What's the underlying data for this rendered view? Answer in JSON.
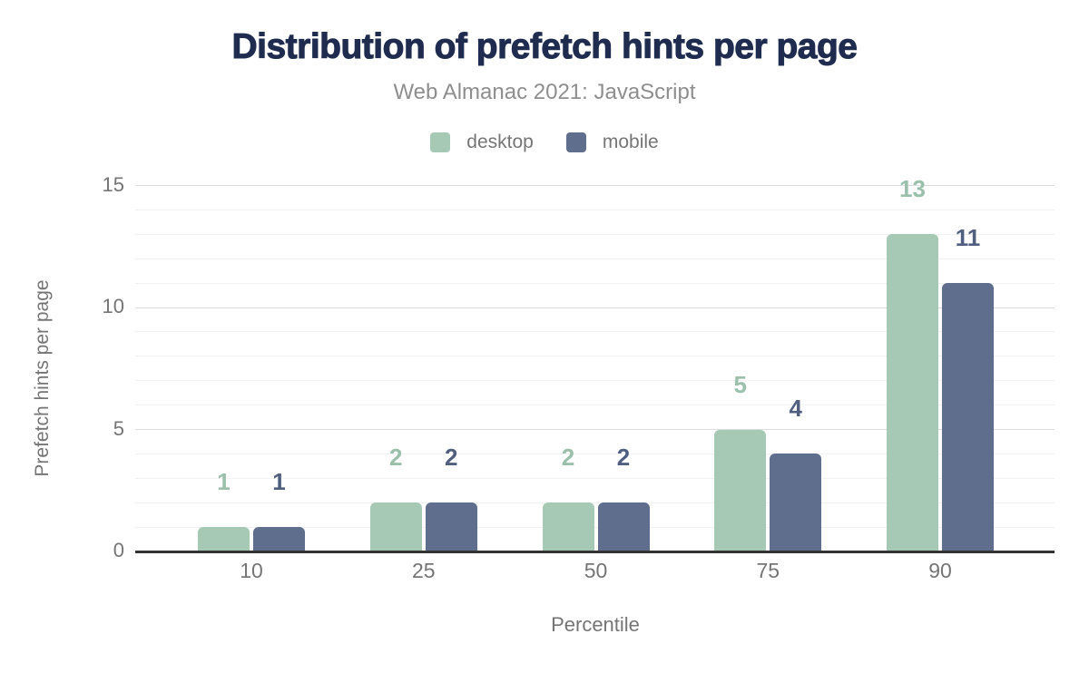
{
  "header": {
    "title": "Distribution of prefetch hints per page",
    "subtitle": "Web Almanac 2021: JavaScript"
  },
  "legend": {
    "items": [
      {
        "label": "desktop",
        "color": "#a6c9b6"
      },
      {
        "label": "mobile",
        "color": "#5f6e8c"
      }
    ]
  },
  "axes": {
    "x_title": "Percentile",
    "y_title": "Prefetch hints per page"
  },
  "colors": {
    "title_text": "#1f2c4f",
    "subtitle_text": "#8e8e8e",
    "axis_text": "#757575",
    "axis_line": "#333333",
    "grid_major": "#dcdcdc",
    "grid_minor": "#f2f2f2",
    "desktop_bar": "#a6c9b6",
    "mobile_bar": "#5f6e8c",
    "desktop_value_label": "#9ac0ac",
    "mobile_value_label": "#505f80"
  },
  "chart_data": {
    "type": "bar",
    "title": "Distribution of prefetch hints per page",
    "subtitle": "Web Almanac 2021: JavaScript",
    "xlabel": "Percentile",
    "ylabel": "Prefetch hints per page",
    "categories": [
      "10",
      "25",
      "50",
      "75",
      "90"
    ],
    "series": [
      {
        "name": "desktop",
        "color": "#a6c9b6",
        "label_color": "#9ac0ac",
        "values": [
          1,
          2,
          2,
          5,
          13
        ]
      },
      {
        "name": "mobile",
        "color": "#5f6e8c",
        "label_color": "#505f80",
        "values": [
          1,
          2,
          2,
          4,
          11
        ]
      }
    ],
    "ylim": [
      0,
      15
    ],
    "y_ticks": [
      0,
      5,
      10,
      15
    ],
    "grid": "horizontal minor lines every 1 unit, darker lines at labeled ticks",
    "legend_position": "top center",
    "bar_corner": "rounded top"
  }
}
